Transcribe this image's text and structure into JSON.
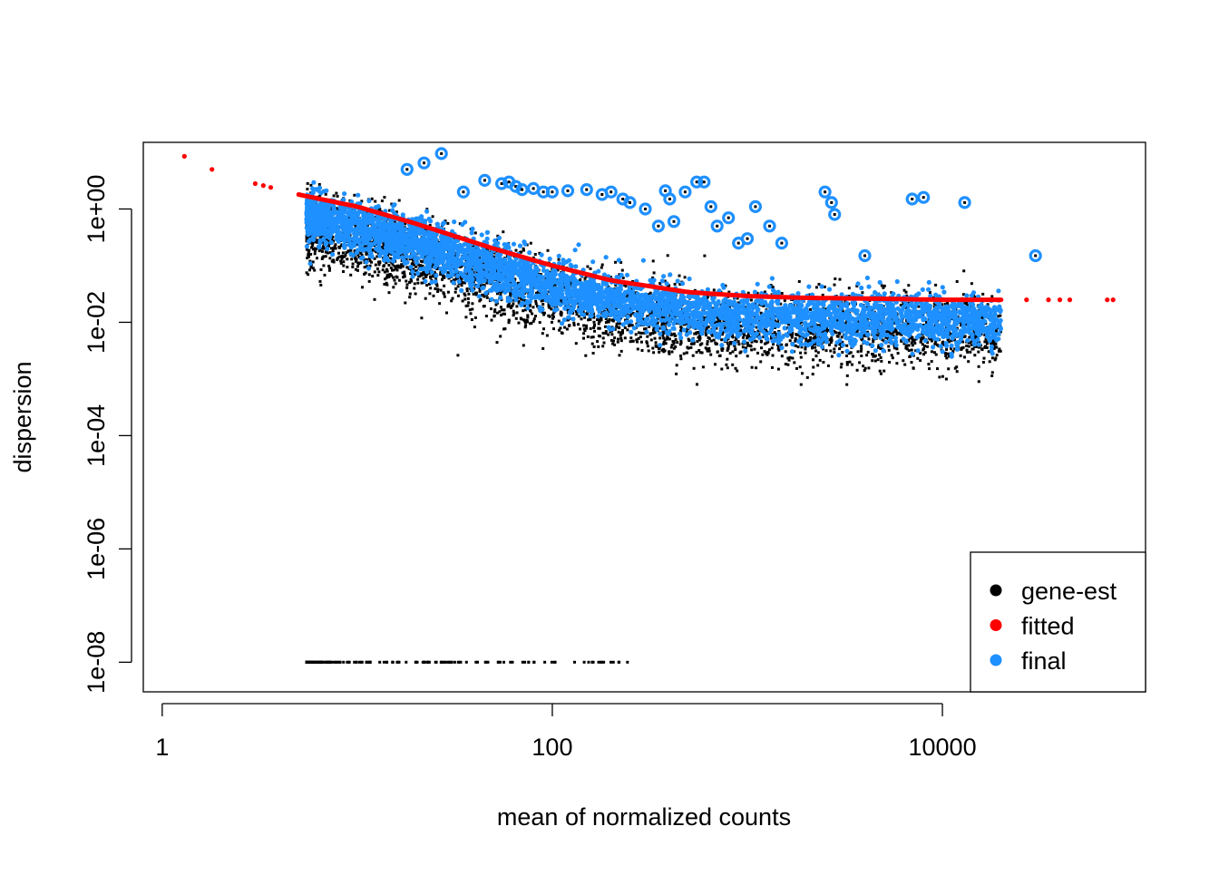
{
  "chart_data": {
    "type": "scatter",
    "title": "",
    "xlabel": "mean of normalized counts",
    "ylabel": "dispersion",
    "x_scale": "log10",
    "y_scale": "log10",
    "xlim": [
      0.8,
      110000
    ],
    "ylim": [
      3e-09,
      15
    ],
    "x_ticks": [
      {
        "value": 1,
        "label": "1"
      },
      {
        "value": 100,
        "label": "100"
      },
      {
        "value": 10000,
        "label": "10000"
      }
    ],
    "y_ticks": [
      {
        "value": 1e-08,
        "label": "1e-08"
      },
      {
        "value": 1e-06,
        "label": "1e-06"
      },
      {
        "value": 0.0001,
        "label": "1e-04"
      },
      {
        "value": 0.01,
        "label": "1e-02"
      },
      {
        "value": 1,
        "label": "1e+00"
      }
    ],
    "legend": {
      "position": "bottom-right",
      "entries": [
        {
          "label": "gene-est",
          "color": "#000000"
        },
        {
          "label": "fitted",
          "color": "#FF0000"
        },
        {
          "label": "final",
          "color": "#1E90FF"
        }
      ]
    },
    "colors": {
      "gene_est": "#000000",
      "fitted": "#FF0000",
      "final": "#1E90FF"
    },
    "series": [
      {
        "name": "fitted",
        "kind": "line",
        "x": [
          5,
          10,
          20,
          50,
          100,
          200,
          500,
          1000,
          2000,
          5000,
          10000,
          20000
        ],
        "y": [
          1.8,
          1.1,
          0.55,
          0.2,
          0.1,
          0.055,
          0.034,
          0.029,
          0.027,
          0.026,
          0.025,
          0.025
        ]
      },
      {
        "name": "fitted",
        "kind": "points",
        "x": [
          1.3,
          1.8,
          3.0,
          3.3,
          3.6,
          27000,
          35000,
          40000,
          45000,
          70000,
          75000
        ],
        "y": [
          8.5,
          5.0,
          2.8,
          2.6,
          2.4,
          0.025,
          0.025,
          0.025,
          0.025,
          0.025,
          0.025
        ]
      },
      {
        "name": "final",
        "kind": "outliers",
        "x": [
          18,
          22,
          27,
          35,
          45,
          55,
          60,
          65,
          70,
          80,
          90,
          100,
          120,
          150,
          180,
          200,
          230,
          250,
          300,
          350,
          380,
          400,
          420,
          480,
          550,
          600,
          650,
          700,
          800,
          900,
          1000,
          1100,
          1300,
          1500,
          2500,
          2700,
          2800,
          4000,
          7000,
          8000,
          13000,
          30000
        ],
        "y": [
          5.0,
          6.5,
          9.5,
          2.0,
          3.2,
          2.8,
          3.0,
          2.5,
          2.2,
          2.3,
          2.0,
          2.0,
          2.1,
          2.2,
          1.8,
          2.0,
          1.5,
          1.3,
          1.0,
          0.5,
          2.1,
          1.5,
          0.6,
          2.0,
          3.0,
          3.0,
          1.1,
          0.5,
          0.7,
          0.25,
          0.3,
          1.1,
          0.5,
          0.25,
          2.0,
          1.3,
          0.8,
          0.15,
          1.5,
          1.6,
          1.3,
          0.15
        ]
      }
    ]
  }
}
